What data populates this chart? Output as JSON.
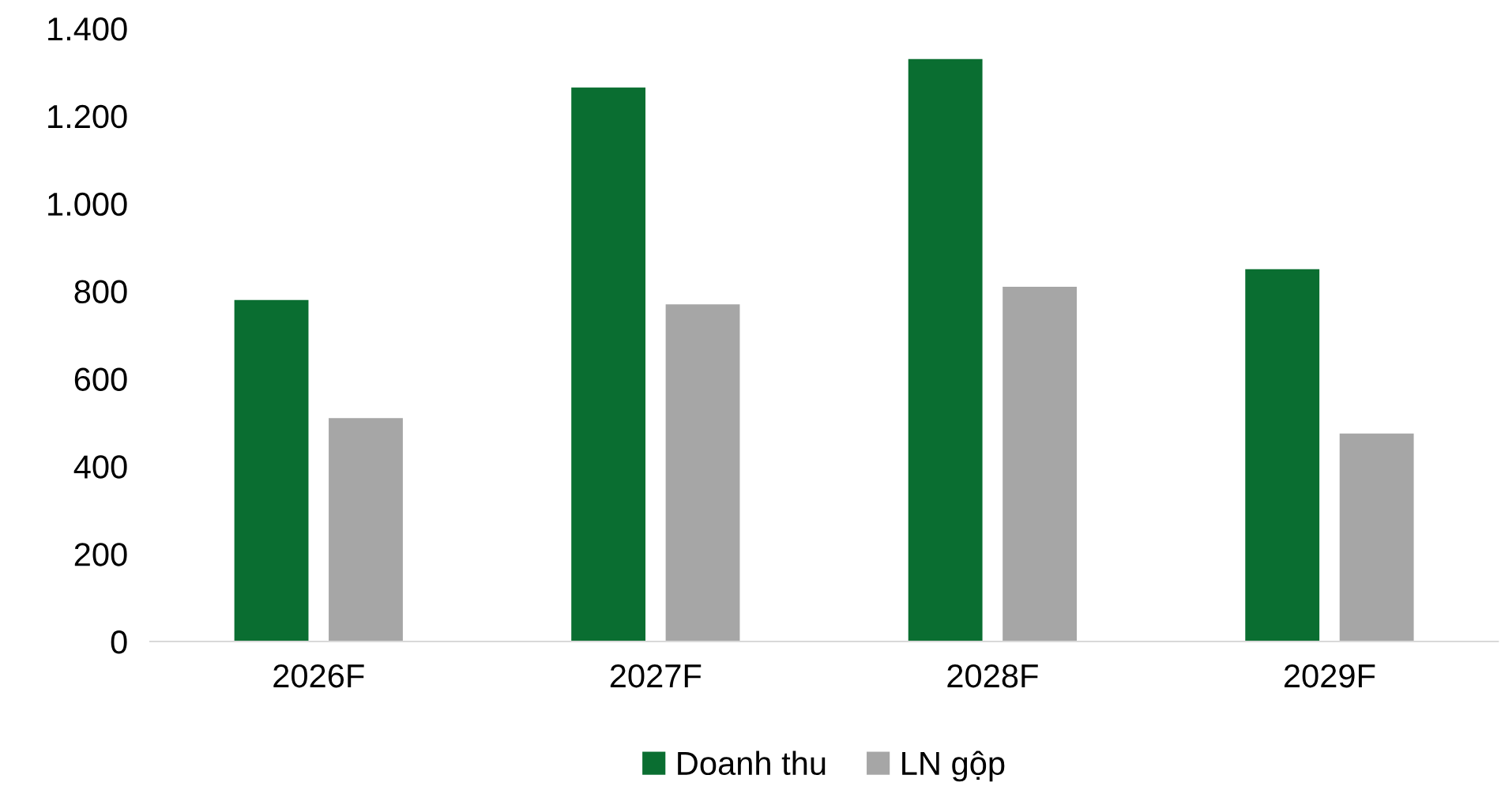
{
  "chart_data": {
    "type": "bar",
    "categories": [
      "2026F",
      "2027F",
      "2028F",
      "2029F"
    ],
    "series": [
      {
        "name": "Doanh thu",
        "color": "#0a6e31",
        "values": [
          780,
          1265,
          1330,
          850
        ]
      },
      {
        "name": "LN gộp",
        "color": "#a6a6a6",
        "values": [
          510,
          770,
          810,
          475
        ]
      }
    ],
    "ylim": [
      0,
      1400
    ],
    "yticks": [
      {
        "value": 0,
        "label": "0"
      },
      {
        "value": 200,
        "label": "200"
      },
      {
        "value": 400,
        "label": "400"
      },
      {
        "value": 600,
        "label": "600"
      },
      {
        "value": 800,
        "label": "800"
      },
      {
        "value": 1000,
        "label": "1.000"
      },
      {
        "value": 1200,
        "label": "1.200"
      },
      {
        "value": 1400,
        "label": "1.400"
      }
    ],
    "grid": false,
    "legend": "bottom"
  }
}
